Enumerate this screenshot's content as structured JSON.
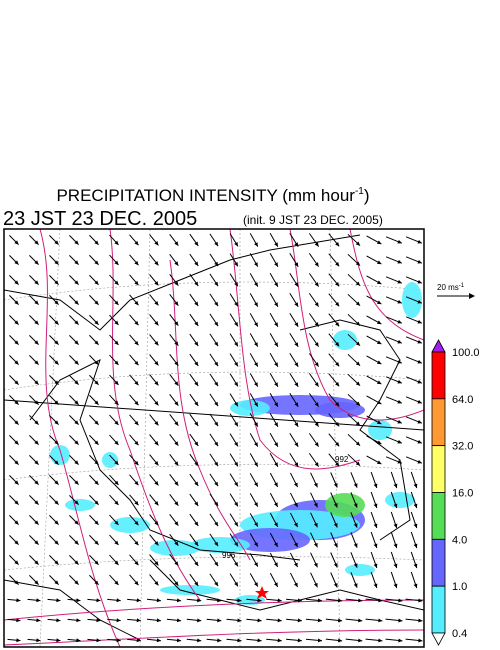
{
  "header": {
    "title": {
      "main": "PRECIPITATION INTENSITY (mm hour",
      "superscript": "-1",
      "close": ")"
    },
    "time": "23 JST 23 DEC. 2005",
    "init": "(init. 9 JST 23 DEC. 2005)"
  },
  "reference_vector": {
    "label": "20 ms",
    "superscript": "-1"
  },
  "isobar_labels": [
    "992",
    "996"
  ],
  "colorbar": {
    "labels": [
      "100.0",
      "64.0",
      "32.0",
      "16.0",
      "4.0",
      "1.0",
      "0.4"
    ],
    "colors": [
      "#a020f0",
      "#ff0000",
      "#ff9933",
      "#ffff66",
      "#55dd55",
      "#6666ff",
      "#55eeff",
      "#ffffff"
    ]
  }
}
